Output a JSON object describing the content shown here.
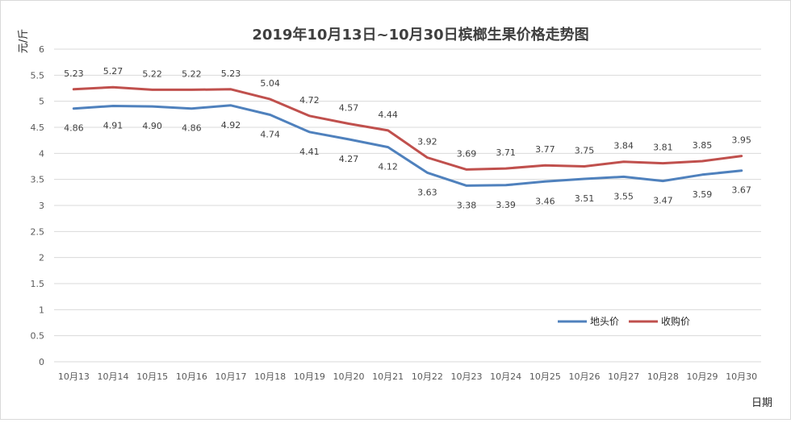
{
  "chart_data": {
    "type": "line",
    "title": "2019年10月13日~10月30日槟榔生果价格走势图",
    "ylabel": "元/斤",
    "xlabel": "日期",
    "ylim": [
      0,
      6
    ],
    "yticks": [
      "0",
      "0.5",
      "1",
      "1.5",
      "2",
      "2.5",
      "3",
      "3.5",
      "4",
      "4.5",
      "5",
      "5.5",
      "6"
    ],
    "categories": [
      "10月13",
      "10月14",
      "10月15",
      "10月16",
      "10月17",
      "10月18",
      "10月19",
      "10月20",
      "10月21",
      "10月22",
      "10月23",
      "10月24",
      "10月25",
      "10月26",
      "10月27",
      "10月28",
      "10月29",
      "10月30"
    ],
    "grid": true,
    "legend_position": "bottom-right",
    "series": [
      {
        "name": "地头价",
        "color": "#4f81bd",
        "values": [
          4.86,
          4.91,
          4.9,
          4.86,
          4.92,
          4.74,
          4.41,
          4.27,
          4.12,
          3.63,
          3.38,
          3.39,
          3.46,
          3.51,
          3.55,
          3.47,
          3.59,
          3.67
        ],
        "labels": [
          "4.86",
          "4.91",
          "4.90",
          "4.86",
          "4.92",
          "4.74",
          "4.41",
          "4.27",
          "4.12",
          "3.63",
          "3.38",
          "3.39",
          "3.46",
          "3.51",
          "3.55",
          "3.47",
          "3.59",
          "3.67"
        ]
      },
      {
        "name": "收购价",
        "color": "#c0504d",
        "values": [
          5.23,
          5.27,
          5.22,
          5.22,
          5.23,
          5.04,
          4.72,
          4.57,
          4.44,
          3.92,
          3.69,
          3.71,
          3.77,
          3.75,
          3.84,
          3.81,
          3.85,
          3.95
        ],
        "labels": [
          "5.23",
          "5.27",
          "5.22",
          "5.22",
          "5.23",
          "5.04",
          "4.72",
          "4.57",
          "4.44",
          "3.92",
          "3.69",
          "3.71",
          "3.77",
          "3.75",
          "3.84",
          "3.81",
          "3.85",
          "3.95"
        ]
      }
    ]
  }
}
